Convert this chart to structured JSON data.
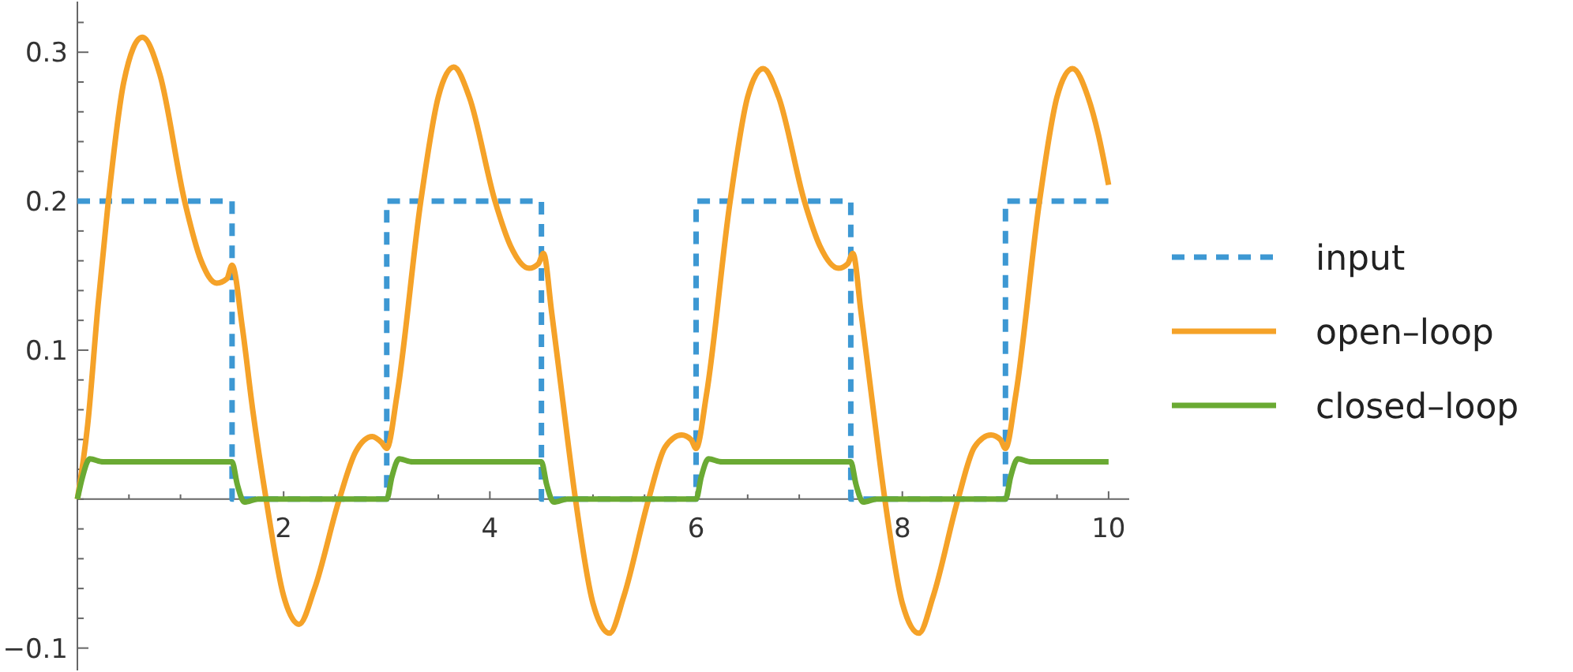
{
  "chart_data": {
    "type": "line",
    "xlim": [
      0,
      10.2
    ],
    "ylim": [
      -0.115,
      0.334
    ],
    "xticks": [
      {
        "value": 0.5,
        "label": null
      },
      {
        "value": 1,
        "label": null
      },
      {
        "value": 1.5,
        "label": null
      },
      2,
      {
        "value": 2.5,
        "label": null
      },
      {
        "value": 3,
        "label": null
      },
      {
        "value": 3.5,
        "label": null
      },
      4,
      {
        "value": 4.5,
        "label": null
      },
      {
        "value": 5,
        "label": null
      },
      {
        "value": 5.5,
        "label": null
      },
      6,
      {
        "value": 6.5,
        "label": null
      },
      {
        "value": 7,
        "label": null
      },
      {
        "value": 7.5,
        "label": null
      },
      8,
      {
        "value": 8.5,
        "label": null
      },
      {
        "value": 9,
        "label": null
      },
      {
        "value": 9.5,
        "label": null
      },
      10
    ],
    "yticks": [
      {
        "value": -0.1,
        "label": "−0.1"
      },
      {
        "value": -0.08,
        "label": null
      },
      {
        "value": -0.06,
        "label": null
      },
      {
        "value": -0.04,
        "label": null
      },
      {
        "value": -0.02,
        "label": null
      },
      {
        "value": 0,
        "label": null
      },
      {
        "value": 0.02,
        "label": null
      },
      {
        "value": 0.04,
        "label": null
      },
      {
        "value": 0.06,
        "label": null
      },
      {
        "value": 0.08,
        "label": null
      },
      0.1,
      {
        "value": 0.12,
        "label": null
      },
      {
        "value": 0.14,
        "label": null
      },
      {
        "value": 0.16,
        "label": null
      },
      {
        "value": 0.18,
        "label": null
      },
      0.2,
      {
        "value": 0.22,
        "label": null
      },
      {
        "value": 0.24,
        "label": null
      },
      {
        "value": 0.26,
        "label": null
      },
      {
        "value": 0.28,
        "label": null
      },
      0.3,
      {
        "value": 0.32,
        "label": null
      }
    ],
    "grid": false,
    "legend": "right",
    "marker": "none",
    "series": [
      {
        "name": "input",
        "type": "step",
        "line_style": "dashed",
        "color": "#3d98d3",
        "x": [
          0,
          1.5,
          3,
          4.5,
          6,
          7.5,
          9,
          10
        ],
        "values": [
          0.2,
          0,
          0.2,
          0,
          0.2,
          0,
          0.2,
          0.2
        ]
      },
      {
        "name": "open–loop",
        "line_style": "solid",
        "color": "#f5a228",
        "x": [
          0,
          0.1,
          0.2,
          0.3,
          0.45,
          0.63,
          0.8,
          1.04,
          1.2,
          1.35,
          1.45,
          1.5,
          1.6,
          1.7,
          1.83,
          2.0,
          2.15,
          2.3,
          2.54,
          2.7,
          2.86,
          2.95,
          3.0,
          3.1,
          3.33,
          3.5,
          3.65,
          3.8,
          4.05,
          4.2,
          4.38,
          4.47,
          4.52,
          4.6,
          4.7,
          4.83,
          5.0,
          5.16,
          5.3,
          5.54,
          5.7,
          5.86,
          5.95,
          6.0,
          6.1,
          6.33,
          6.5,
          6.65,
          6.8,
          7.05,
          7.2,
          7.38,
          7.47,
          7.52,
          7.6,
          7.7,
          7.83,
          8.0,
          8.16,
          8.3,
          8.54,
          8.7,
          8.86,
          8.95,
          9.0,
          9.1,
          9.33,
          9.5,
          9.65,
          9.8,
          9.9,
          10.0
        ],
        "values": [
          0,
          0.05,
          0.13,
          0.2,
          0.28,
          0.31,
          0.285,
          0.2,
          0.16,
          0.145,
          0.148,
          0.157,
          0.115,
          0.06,
          0,
          -0.065,
          -0.084,
          -0.06,
          0,
          0.032,
          0.042,
          0.038,
          0.034,
          0.07,
          0.2,
          0.27,
          0.29,
          0.27,
          0.2,
          0.17,
          0.155,
          0.158,
          0.165,
          0.125,
          0.07,
          0,
          -0.07,
          -0.09,
          -0.065,
          0,
          0.035,
          0.043,
          0.04,
          0.034,
          0.07,
          0.2,
          0.27,
          0.289,
          0.27,
          0.2,
          0.17,
          0.155,
          0.158,
          0.165,
          0.125,
          0.07,
          0,
          -0.07,
          -0.09,
          -0.065,
          0,
          0.035,
          0.043,
          0.04,
          0.034,
          0.07,
          0.2,
          0.27,
          0.289,
          0.27,
          0.245,
          0.211
        ]
      },
      {
        "name": "closed–loop",
        "line_style": "solid",
        "color": "#6aaa33",
        "x": [
          0,
          0.05,
          0.12,
          0.25,
          1.5,
          1.55,
          1.62,
          1.75,
          3.0,
          3.05,
          3.12,
          3.25,
          4.5,
          4.55,
          4.62,
          4.75,
          6.0,
          6.05,
          6.12,
          6.25,
          7.5,
          7.55,
          7.62,
          7.75,
          9.0,
          9.05,
          9.12,
          9.25,
          10.0
        ],
        "values": [
          0,
          0.015,
          0.027,
          0.025,
          0.025,
          0.01,
          -0.002,
          0,
          0,
          0.015,
          0.027,
          0.025,
          0.025,
          0.01,
          -0.002,
          0,
          0,
          0.015,
          0.027,
          0.025,
          0.025,
          0.01,
          -0.002,
          0,
          0,
          0.015,
          0.027,
          0.025,
          0.025
        ]
      }
    ]
  }
}
